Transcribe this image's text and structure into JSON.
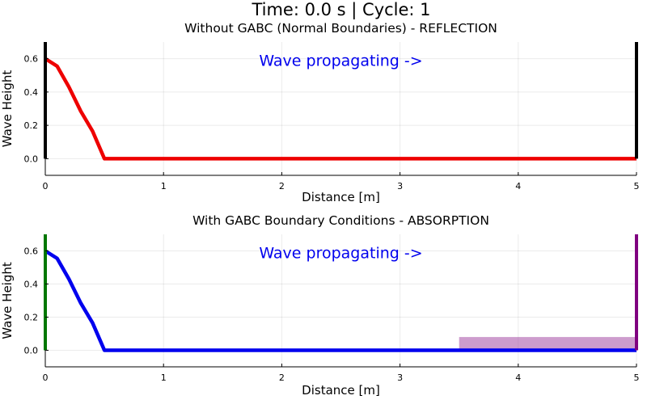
{
  "figure_title": "Time: 0.0 s | Cycle: 1",
  "chart_data": [
    {
      "type": "line",
      "title": "Without GABC (Normal Boundaries) - REFLECTION",
      "xlabel": "Distance [m]",
      "ylabel": "Wave Height",
      "xlim": [
        0,
        5
      ],
      "ylim": [
        -0.1,
        0.7
      ],
      "xticks": [
        "0",
        "1",
        "2",
        "3",
        "4",
        "5"
      ],
      "yticks": [
        "0.0",
        "0.2",
        "0.4",
        "0.6"
      ],
      "grid": true,
      "annotation": {
        "text": "Wave propagating ->",
        "x": 2.5,
        "y": 0.59,
        "color": "#0000ee"
      },
      "series": [
        {
          "color": "#ee0000",
          "x": [
            0,
            0.1,
            0.2,
            0.3,
            0.4,
            0.5,
            0.6,
            1,
            2,
            3,
            4,
            5
          ],
          "y": [
            0.6,
            0.555,
            0.43,
            0.285,
            0.165,
            0.0,
            0.0,
            0.0,
            0.0,
            0.0,
            0.0,
            0.0
          ]
        }
      ],
      "boundaries": [
        {
          "x": 0,
          "color": "#000000"
        },
        {
          "x": 5,
          "color": "#000000"
        }
      ]
    },
    {
      "type": "line",
      "title": "With GABC Boundary Conditions - ABSORPTION",
      "xlabel": "Distance [m]",
      "ylabel": "Wave Height",
      "xlim": [
        0,
        5
      ],
      "ylim": [
        -0.1,
        0.7
      ],
      "xticks": [
        "0",
        "1",
        "2",
        "3",
        "4",
        "5"
      ],
      "yticks": [
        "0.0",
        "0.2",
        "0.4",
        "0.6"
      ],
      "grid": true,
      "annotation": {
        "text": "Wave propagating ->",
        "x": 2.5,
        "y": 0.59,
        "color": "#0000ee"
      },
      "series": [
        {
          "color": "#0000ee",
          "x": [
            0,
            0.1,
            0.2,
            0.3,
            0.4,
            0.5,
            0.6,
            1,
            2,
            3,
            4,
            5
          ],
          "y": [
            0.6,
            0.555,
            0.43,
            0.285,
            0.165,
            0.0,
            0.0,
            0.0,
            0.0,
            0.0,
            0.0,
            0.0
          ]
        }
      ],
      "boundaries": [
        {
          "x": 0,
          "color": "#007700"
        },
        {
          "x": 5,
          "color": "#800080"
        }
      ],
      "shaded_region": {
        "x": [
          3.5,
          5
        ],
        "y": [
          0,
          0.08
        ],
        "color": "#9b3a9b",
        "opacity": 0.5
      }
    }
  ]
}
